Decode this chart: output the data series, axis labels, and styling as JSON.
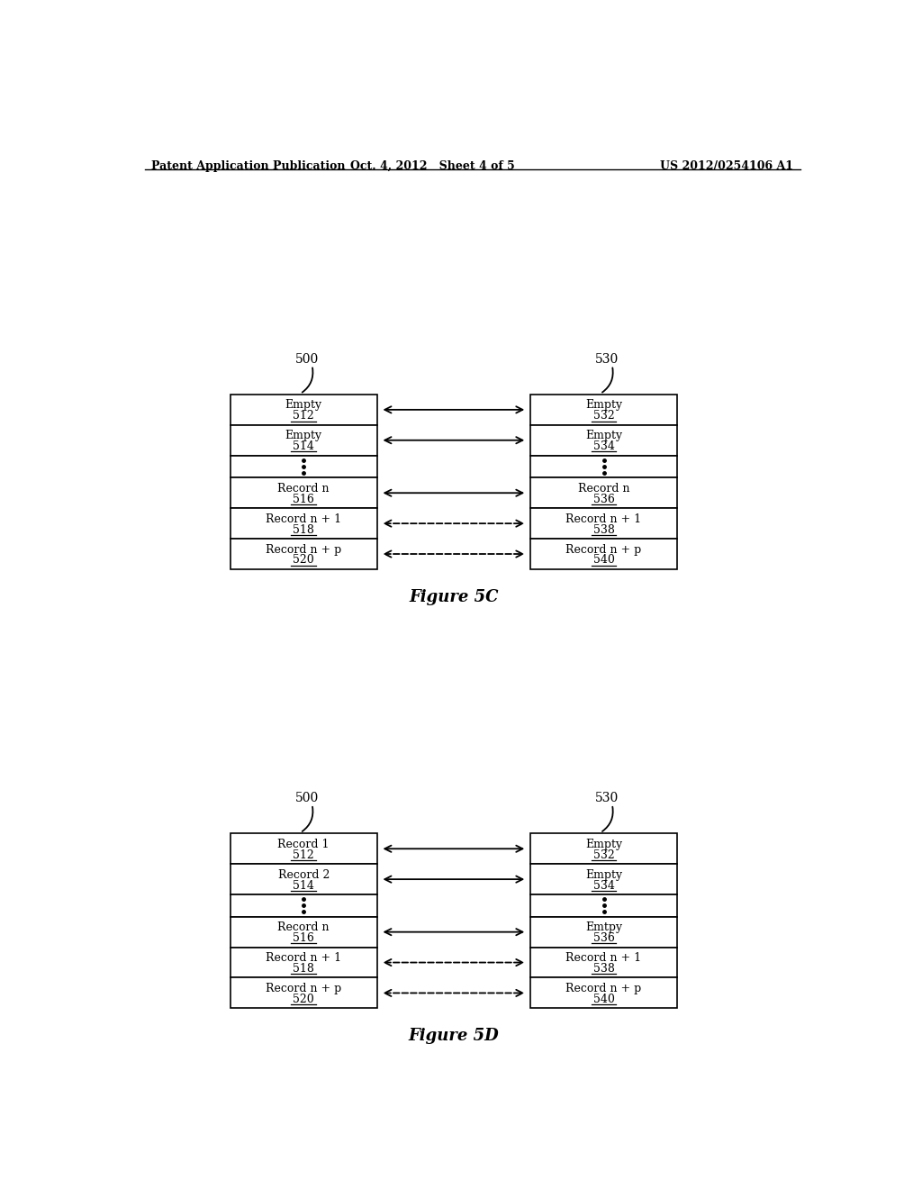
{
  "header_left": "Patent Application Publication",
  "header_center": "Oct. 4, 2012   Sheet 4 of 5",
  "header_right": "US 2012/0254106 A1",
  "fig5c": {
    "label": "Figure 5C",
    "label_500": "500",
    "label_530": "530",
    "left_rows": [
      {
        "top": "Empty",
        "bot": "512"
      },
      {
        "top": "Empty",
        "bot": "514"
      },
      {
        "top": "...",
        "bot": ""
      },
      {
        "top": "Record n",
        "bot": "516"
      },
      {
        "top": "Record n + 1",
        "bot": "518"
      },
      {
        "top": "Record n + p",
        "bot": "520"
      }
    ],
    "right_rows": [
      {
        "top": "Empty",
        "bot": "532"
      },
      {
        "top": "Empty",
        "bot": "534"
      },
      {
        "top": "...",
        "bot": ""
      },
      {
        "top": "Record n",
        "bot": "536"
      },
      {
        "top": "Record n + 1",
        "bot": "538"
      },
      {
        "top": "Record n + p",
        "bot": "540"
      }
    ],
    "arrow_types": [
      "solid",
      "solid",
      "none",
      "solid",
      "dashed",
      "dashed"
    ]
  },
  "fig5d": {
    "label": "Figure 5D",
    "label_500": "500",
    "label_530": "530",
    "left_rows": [
      {
        "top": "Record 1",
        "bot": "512"
      },
      {
        "top": "Record 2",
        "bot": "514"
      },
      {
        "top": "...",
        "bot": ""
      },
      {
        "top": "Record n",
        "bot": "516"
      },
      {
        "top": "Record n + 1",
        "bot": "518"
      },
      {
        "top": "Record n + p",
        "bot": "520"
      }
    ],
    "right_rows": [
      {
        "top": "Empty",
        "bot": "532"
      },
      {
        "top": "Empty",
        "bot": "534"
      },
      {
        "top": "...",
        "bot": ""
      },
      {
        "top": "Emtpy",
        "bot": "536"
      },
      {
        "top": "Record n + 1",
        "bot": "538"
      },
      {
        "top": "Record n + p",
        "bot": "540"
      }
    ],
    "arrow_types": [
      "solid",
      "solid",
      "none",
      "solid",
      "dashed",
      "dashed"
    ]
  }
}
